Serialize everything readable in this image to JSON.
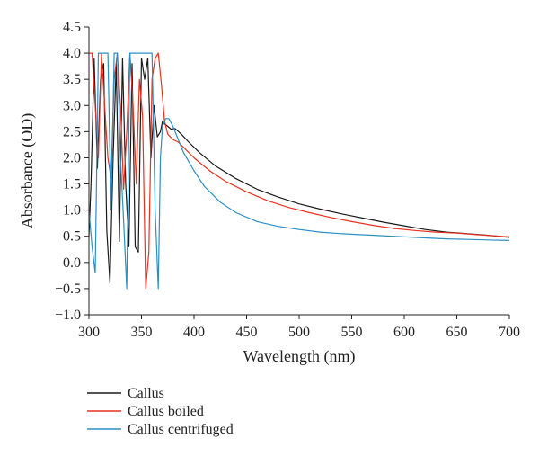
{
  "chart_data": {
    "type": "line",
    "xlabel": "Wavelength (nm)",
    "ylabel": "Absorbance (OD)",
    "xlim": [
      300,
      700
    ],
    "ylim": [
      -1.0,
      4.5
    ],
    "xticks": [
      300,
      350,
      400,
      450,
      500,
      550,
      600,
      650,
      700
    ],
    "xtick_labels": [
      "300",
      "350",
      "400",
      "450",
      "500",
      "550",
      "600",
      "650",
      "700"
    ],
    "yticks": [
      -1.0,
      -0.5,
      0.0,
      0.5,
      1.0,
      1.5,
      2.0,
      2.5,
      3.0,
      3.5,
      4.0,
      4.5
    ],
    "ytick_labels": [
      "−1.0",
      "−0.5",
      "0.0",
      "0.5",
      "1.0",
      "1.5",
      "2.0",
      "2.5",
      "3.0",
      "3.5",
      "4.0",
      "4.5"
    ],
    "grid": false,
    "legend_position": "below",
    "series": [
      {
        "name": "Callus",
        "color": "#1a1a1a",
        "x": [
          300,
          302,
          305,
          308,
          311,
          314,
          317,
          320,
          323,
          326,
          329,
          332,
          335,
          338,
          341,
          344,
          347,
          350,
          353,
          356,
          359,
          362,
          365,
          368,
          370,
          372,
          375,
          378,
          382,
          388,
          395,
          405,
          420,
          440,
          460,
          480,
          500,
          520,
          540,
          560,
          580,
          600,
          620,
          640,
          660,
          680,
          700
        ],
        "y": [
          0.5,
          1.5,
          3.9,
          1.8,
          3.5,
          3.8,
          0.6,
          -0.4,
          2.0,
          3.8,
          0.4,
          3.9,
          1.5,
          0.3,
          3.8,
          0.3,
          0.2,
          3.9,
          3.5,
          3.9,
          2.0,
          3.0,
          2.4,
          2.5,
          2.7,
          2.65,
          2.6,
          2.55,
          2.56,
          2.45,
          2.3,
          2.1,
          1.85,
          1.6,
          1.4,
          1.25,
          1.12,
          1.02,
          0.93,
          0.85,
          0.77,
          0.7,
          0.63,
          0.58,
          0.55,
          0.52,
          0.48
        ]
      },
      {
        "name": "Callus boiled",
        "color": "#e8321e",
        "x": [
          300,
          303,
          306,
          309,
          312,
          315,
          318,
          321,
          324,
          327,
          330,
          333,
          336,
          339,
          342,
          345,
          348,
          351,
          354,
          357,
          360,
          363,
          366,
          369,
          372,
          375,
          380,
          385,
          390,
          400,
          415,
          430,
          450,
          470,
          490,
          510,
          530,
          550,
          570,
          590,
          610,
          630,
          650,
          670,
          700
        ],
        "y": [
          4.0,
          4.0,
          3.0,
          2.0,
          4.0,
          3.0,
          2.0,
          1.6,
          3.5,
          4.0,
          3.0,
          1.4,
          2.5,
          4.0,
          3.0,
          1.5,
          3.5,
          2.8,
          -0.5,
          0.2,
          3.5,
          3.9,
          4.0,
          3.4,
          2.7,
          2.45,
          2.35,
          2.3,
          2.2,
          2.0,
          1.75,
          1.55,
          1.35,
          1.18,
          1.05,
          0.95,
          0.86,
          0.78,
          0.71,
          0.65,
          0.61,
          0.58,
          0.56,
          0.53,
          0.49
        ]
      },
      {
        "name": "Callus centrifuged",
        "color": "#2a8fc4",
        "x": [
          300,
          303,
          306,
          309,
          312,
          315,
          318,
          321,
          324,
          327,
          330,
          333,
          336,
          339,
          342,
          345,
          348,
          351,
          354,
          357,
          360,
          363,
          366,
          368,
          370,
          373,
          376,
          380,
          385,
          390,
          400,
          410,
          425,
          440,
          460,
          480,
          500,
          520,
          540,
          560,
          580,
          600,
          620,
          640,
          660,
          680,
          700
        ],
        "y": [
          1.0,
          0.3,
          -0.2,
          4.0,
          4.0,
          4.0,
          4.0,
          1.0,
          4.0,
          4.0,
          2.0,
          0.8,
          -0.5,
          4.0,
          4.0,
          4.0,
          4.0,
          4.0,
          4.0,
          4.0,
          4.0,
          1.0,
          -0.5,
          2.0,
          2.6,
          2.75,
          2.75,
          2.6,
          2.35,
          2.1,
          1.75,
          1.45,
          1.15,
          0.95,
          0.78,
          0.69,
          0.63,
          0.58,
          0.55,
          0.53,
          0.51,
          0.49,
          0.47,
          0.45,
          0.44,
          0.43,
          0.42
        ]
      }
    ]
  }
}
